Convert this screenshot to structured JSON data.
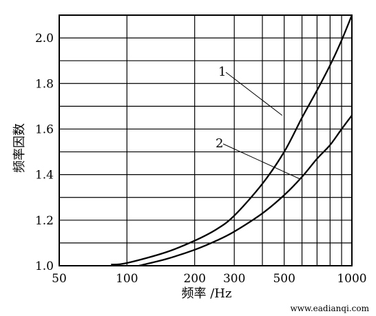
{
  "watermark": "www.eadianqi.com",
  "chart_data": {
    "type": "line",
    "xlabel": "频率 /Hz",
    "ylabel": "频率因数",
    "x_scale": "log",
    "xlim": [
      50,
      1000
    ],
    "ylim": [
      1.0,
      2.1
    ],
    "x_grid": [
      100,
      200,
      300,
      400,
      500,
      600,
      700,
      800,
      900
    ],
    "y_grid": [
      1.1,
      1.2,
      1.3,
      1.4,
      1.5,
      1.6,
      1.7,
      1.8,
      1.9,
      2.0
    ],
    "x_ticks": [
      {
        "value": 50,
        "label": "50"
      },
      {
        "value": 100,
        "label": "100"
      },
      {
        "value": 200,
        "label": "200"
      },
      {
        "value": 300,
        "label": "300"
      },
      {
        "value": 500,
        "label": "500"
      },
      {
        "value": 1000,
        "label": "1000"
      }
    ],
    "y_ticks": [
      {
        "value": 1.0,
        "label": "1.0"
      },
      {
        "value": 1.2,
        "label": "1.2"
      },
      {
        "value": 1.4,
        "label": "1.4"
      },
      {
        "value": 1.6,
        "label": "1.6"
      },
      {
        "value": 1.8,
        "label": "1.8"
      },
      {
        "value": 2.0,
        "label": "2.0"
      }
    ],
    "grid": true,
    "series": [
      {
        "name": "1",
        "label_at": [
          490,
          1.66
        ],
        "x": [
          85,
          100,
          150,
          200,
          250,
          300,
          400,
          500,
          600,
          700,
          800,
          900,
          1000
        ],
        "y": [
          1.005,
          1.012,
          1.06,
          1.11,
          1.16,
          1.22,
          1.36,
          1.5,
          1.65,
          1.77,
          1.88,
          1.99,
          2.1
        ]
      },
      {
        "name": "2",
        "label_at": [
          590,
          1.38
        ],
        "x": [
          113,
          150,
          200,
          250,
          300,
          400,
          500,
          600,
          700,
          800,
          900,
          1000
        ],
        "y": [
          1.0,
          1.03,
          1.07,
          1.11,
          1.15,
          1.23,
          1.31,
          1.39,
          1.47,
          1.53,
          1.6,
          1.66
        ]
      }
    ]
  }
}
